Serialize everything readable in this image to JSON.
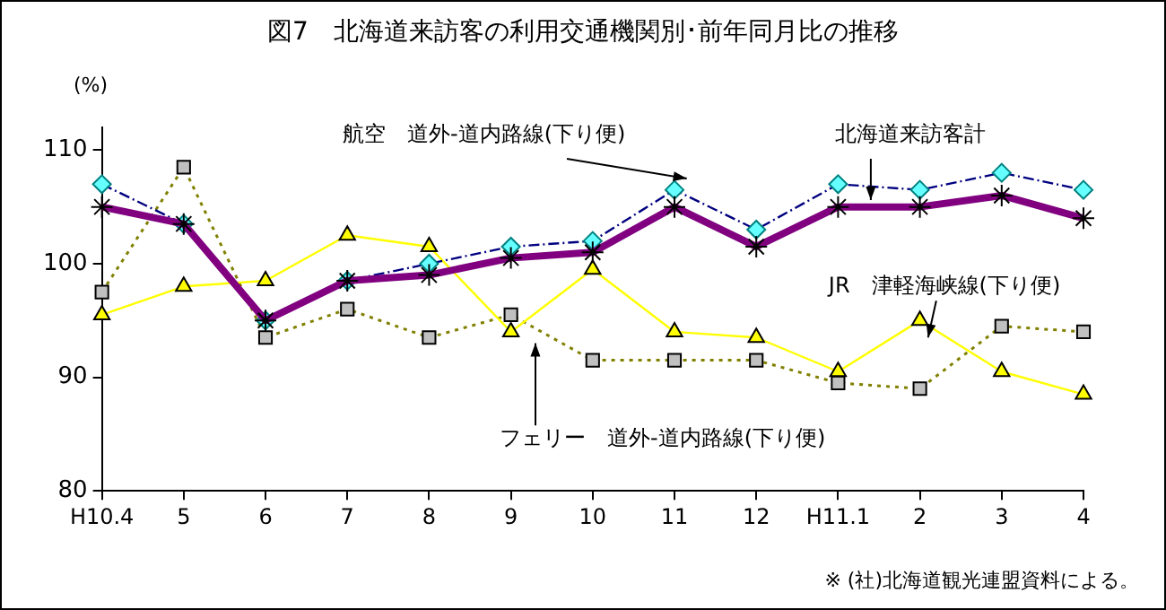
{
  "chart_data": {
    "type": "line",
    "title": "図7　北海道来訪客の利用交通機関別･前年同月比の推移",
    "ylabel": "(%)",
    "categories": [
      "H10.4",
      "5",
      "6",
      "7",
      "8",
      "9",
      "10",
      "11",
      "12",
      "H11.1",
      "2",
      "3",
      "4"
    ],
    "ylim": [
      80,
      112
    ],
    "yticks": [
      80,
      90,
      100,
      110
    ],
    "grid": false,
    "legend": false,
    "series": [
      {
        "name": "航空　道外-道内路線(下り便)",
        "color": "#000080",
        "values": [
          107,
          103.5,
          95,
          98.5,
          100,
          101.5,
          102,
          106.5,
          103,
          107,
          106.5,
          108,
          106.5
        ],
        "marker": "diamond",
        "line_style": "dashed"
      },
      {
        "name": "北海道来訪客計",
        "color": "#800080",
        "values": [
          105,
          103.5,
          95,
          98.5,
          99,
          100.5,
          101,
          105,
          101.5,
          105,
          105,
          106,
          104
        ],
        "marker": "cross",
        "line_style": "solid"
      },
      {
        "name": "JR　津軽海峡線(下り便)",
        "color": "#ffff00",
        "values": [
          95.5,
          98,
          98.5,
          102.5,
          101.5,
          94,
          99.5,
          94,
          93.5,
          90.5,
          95,
          90.5,
          88.5
        ],
        "marker": "triangle",
        "line_style": "solid"
      },
      {
        "name": "フェリー　道外-道内路線(下り便)",
        "color": "#808000",
        "values": [
          97.5,
          108.5,
          93.5,
          96,
          93.5,
          95.5,
          91.5,
          91.5,
          91.5,
          89.5,
          89,
          94.5,
          94
        ],
        "marker": "square",
        "line_style": "dotted"
      }
    ],
    "annotations": [
      "※ (社)北海道観光連盟資料による。"
    ]
  }
}
